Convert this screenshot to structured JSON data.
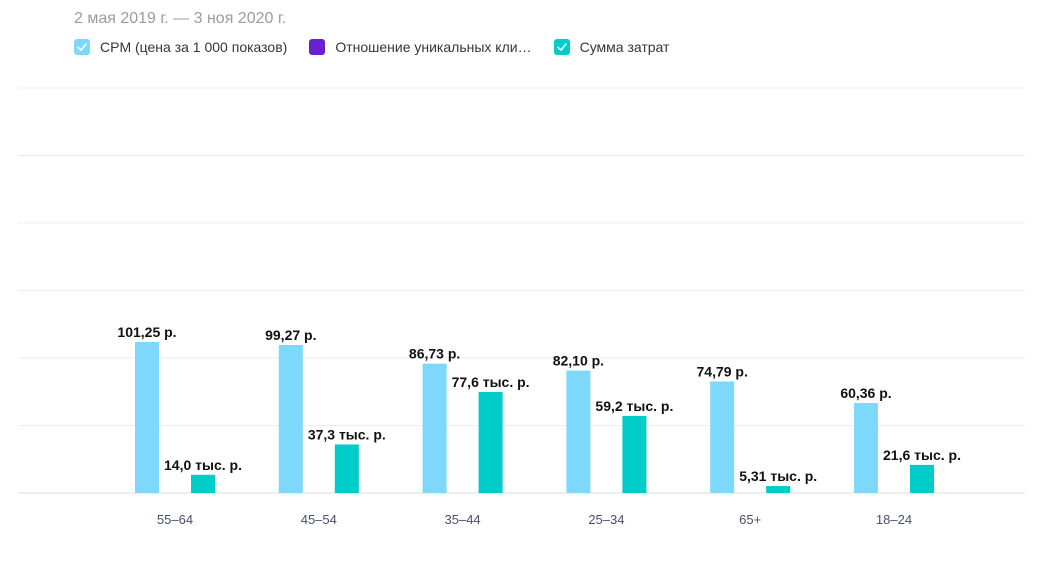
{
  "header": {
    "date_range": "2 мая 2019 г. — 3 ноя 2020 г."
  },
  "legend": [
    {
      "label": "CPM (цена за 1 000 показов)",
      "color": "#7dd8fc",
      "checked": true,
      "icon": "check-icon"
    },
    {
      "label": "Отношение уникальных клиентов",
      "display_label": "Отношение уникальных кли…",
      "color": "#6a1fd0",
      "checked": false
    },
    {
      "label": "Сумма затрат",
      "color": "#00cdca",
      "checked": true,
      "icon": "check-icon"
    }
  ],
  "chart_data": {
    "type": "bar",
    "categories": [
      "55–64",
      "45–54",
      "35–44",
      "25–34",
      "65+",
      "18–24"
    ],
    "series": [
      {
        "name": "CPM (цена за 1 000 показов)",
        "color": "#7dd8fc",
        "values": [
          101.25,
          99.27,
          86.73,
          82.1,
          74.79,
          60.36
        ],
        "labels": [
          "101,25 р.",
          "99,27 р.",
          "86,73 р.",
          "82,10 р.",
          "74,79 р.",
          "60,36 р."
        ]
      },
      {
        "name": "Сумма затрат",
        "color": "#00cdca",
        "values": [
          14.0,
          37.3,
          77.6,
          59.2,
          5.31,
          21.6
        ],
        "labels": [
          "14,0 тыс. р.",
          "37,3 тыс. р.",
          "77,6 тыс. р.",
          "59,2 тыс. р.",
          "5,31 тыс. р.",
          "21,6 тыс. р."
        ]
      }
    ],
    "grid": true,
    "legend_position": "top-left"
  }
}
